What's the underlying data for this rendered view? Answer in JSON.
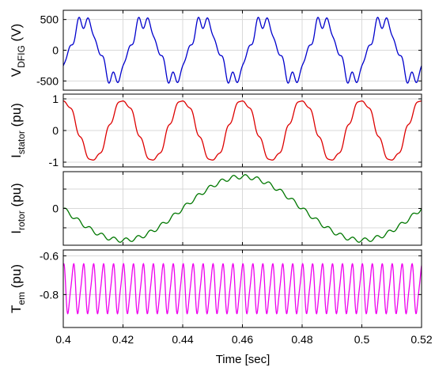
{
  "chart_data": [
    {
      "type": "line",
      "ylabel": "V",
      "ylabel_sub": "DFIG",
      "ylabel_unit": " (V)",
      "ylim": [
        -650,
        650
      ],
      "yticks": [
        500,
        0,
        -500
      ],
      "yticklabels": [
        "500",
        "0",
        "-500"
      ],
      "grid": true,
      "series": [
        {
          "color": "#0000cc",
          "waveform": {
            "kind": "sin",
            "freq_hz": 50,
            "amp": 480,
            "phase_deg": -36,
            "harmonics": [
              {
                "n": 5,
                "amp": 72,
                "phase_deg": 0
              },
              {
                "n": 7,
                "amp": 58,
                "phase_deg": 150
              }
            ]
          }
        }
      ]
    },
    {
      "type": "line",
      "ylabel": "I",
      "ylabel_sub": "stator",
      "ylabel_unit": " (pu)",
      "ylim": [
        -1.15,
        1.15
      ],
      "yticks": [
        1,
        0,
        -1
      ],
      "yticklabels": [
        "1",
        "0",
        "-1"
      ],
      "grid": true,
      "series": [
        {
          "color": "#dd0000",
          "waveform": {
            "kind": "sin",
            "freq_hz": 50,
            "amp": 0.94,
            "phase_deg": 90,
            "harmonics": [
              {
                "n": 5,
                "amp": 0.07,
                "phase_deg": 200
              },
              {
                "n": 7,
                "amp": 0.05,
                "phase_deg": 20
              }
            ]
          }
        }
      ]
    },
    {
      "type": "line",
      "ylabel": "I",
      "ylabel_sub": "rotor",
      "ylabel_unit": " (pu)",
      "ylim": [
        -0.95,
        0.95
      ],
      "yticks": [
        0.5,
        0,
        -0.5
      ],
      "yticklabels": [
        "",
        "0",
        ""
      ],
      "grid": true,
      "series": [
        {
          "color": "#007700",
          "waveform": {
            "kind": "sin",
            "freq_hz": 12.5,
            "amp": 0.82,
            "phase_deg": 180,
            "harmonics": [
              {
                "n": 20,
                "amp": 0.055,
                "phase_deg": 0
              }
            ]
          }
        }
      ]
    },
    {
      "type": "line",
      "ylabel": "T",
      "ylabel_sub": "em",
      "ylabel_unit": " (pu)",
      "ylim": [
        -0.97,
        -0.57
      ],
      "yticks": [
        -0.6,
        -0.8
      ],
      "yticklabels": [
        "-0.6",
        "-0.8"
      ],
      "grid": true,
      "series": [
        {
          "color": "#ee00ee",
          "waveform": {
            "kind": "sin",
            "freq_hz": 300,
            "amp": 0.12,
            "offset": -0.77,
            "phase_deg": 90,
            "harmonics": [
              {
                "n": 2,
                "amp": 0.025,
                "phase_deg": 0
              }
            ]
          }
        }
      ]
    }
  ],
  "x_axis": {
    "xlim": [
      0.4,
      0.52
    ],
    "xticks": [
      0.4,
      0.42,
      0.44,
      0.46,
      0.48,
      0.5,
      0.52
    ],
    "xticklabels": [
      "0.4",
      "0.42",
      "0.44",
      "0.46",
      "0.48",
      "0.5",
      "0.52"
    ],
    "xlabel": "Time [sec]"
  }
}
